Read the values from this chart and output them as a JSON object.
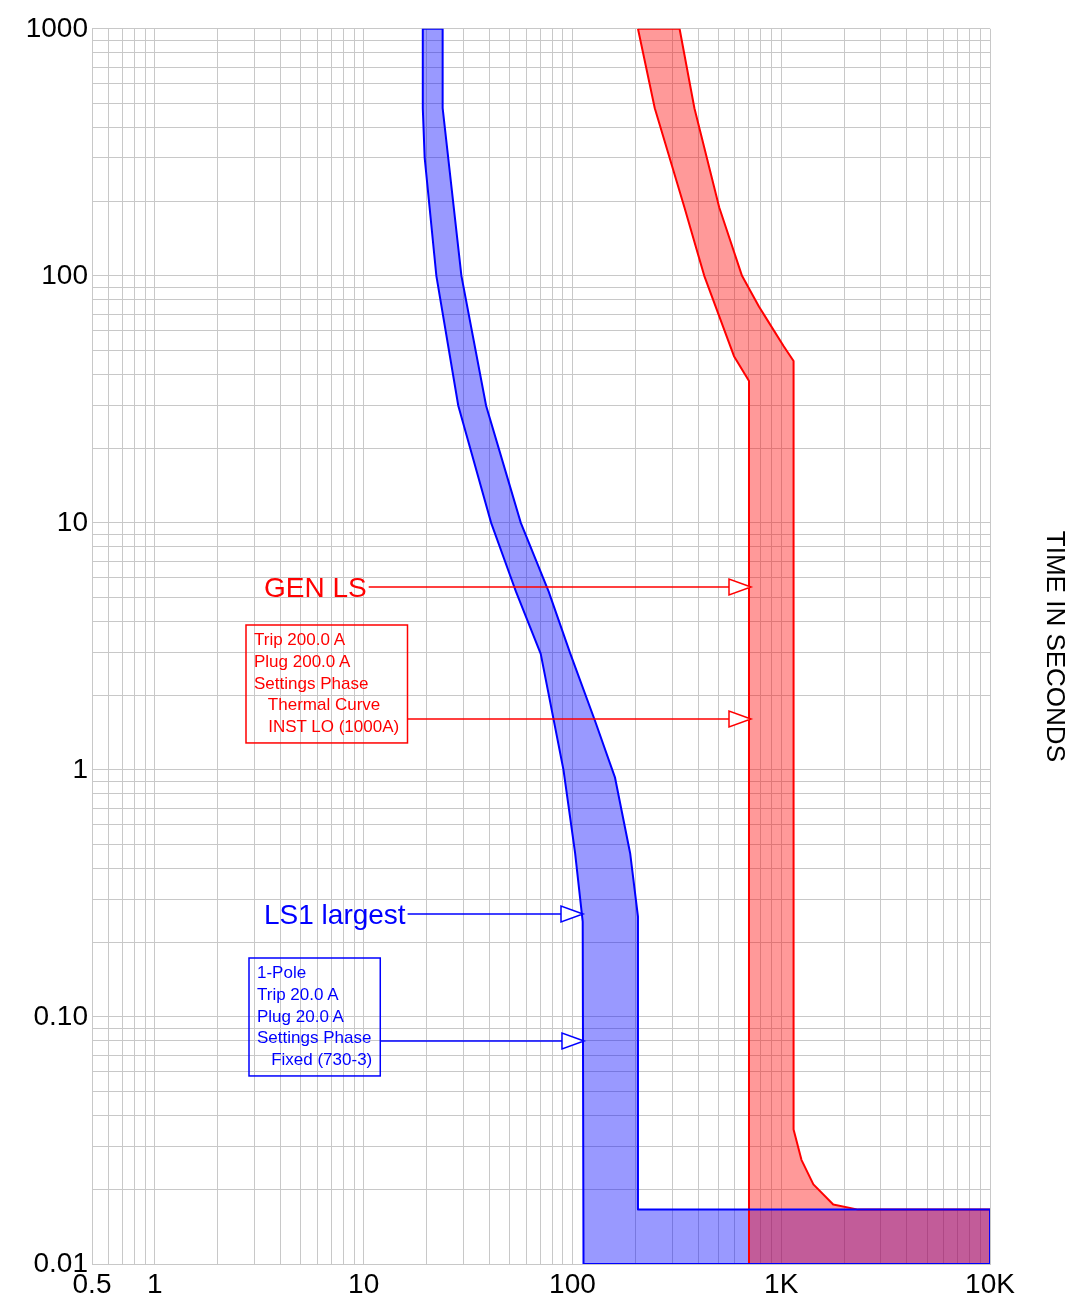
{
  "chart_data": {
    "type": "area",
    "ylabel": "TIME IN SECONDS",
    "log": "xy",
    "grid": true,
    "legend": false,
    "xlim": [
      0.5,
      10000
    ],
    "ylim": [
      0.01,
      1000
    ],
    "xticks": [
      0.5,
      {
        "value": 0.6,
        "label": null
      },
      {
        "value": 0.7,
        "label": null
      },
      {
        "value": 0.8,
        "label": null
      },
      {
        "value": 0.9,
        "label": null
      },
      1,
      {
        "value": 2,
        "label": null
      },
      {
        "value": 3,
        "label": null
      },
      {
        "value": 4,
        "label": null
      },
      {
        "value": 5,
        "label": null
      },
      {
        "value": 6,
        "label": null
      },
      {
        "value": 7,
        "label": null
      },
      {
        "value": 8,
        "label": null
      },
      {
        "value": 9,
        "label": null
      },
      10,
      {
        "value": 20,
        "label": null
      },
      {
        "value": 30,
        "label": null
      },
      {
        "value": 40,
        "label": null
      },
      {
        "value": 50,
        "label": null
      },
      {
        "value": 60,
        "label": null
      },
      {
        "value": 70,
        "label": null
      },
      {
        "value": 80,
        "label": null
      },
      {
        "value": 90,
        "label": null
      },
      100,
      {
        "value": 200,
        "label": null
      },
      {
        "value": 300,
        "label": null
      },
      {
        "value": 400,
        "label": null
      },
      {
        "value": 500,
        "label": null
      },
      {
        "value": 600,
        "label": null
      },
      {
        "value": 700,
        "label": null
      },
      {
        "value": 800,
        "label": null
      },
      {
        "value": 900,
        "label": null
      },
      {
        "value": 1000,
        "label": "1K"
      },
      {
        "value": 2000,
        "label": null
      },
      {
        "value": 3000,
        "label": null
      },
      {
        "value": 4000,
        "label": null
      },
      {
        "value": 5000,
        "label": null
      },
      {
        "value": 6000,
        "label": null
      },
      {
        "value": 7000,
        "label": null
      },
      {
        "value": 8000,
        "label": null
      },
      {
        "value": 9000,
        "label": null
      },
      {
        "value": 10000,
        "label": "10K"
      }
    ],
    "yticks": [
      0.01,
      {
        "value": 0.02,
        "label": null
      },
      {
        "value": 0.03,
        "label": null
      },
      {
        "value": 0.04,
        "label": null
      },
      {
        "value": 0.05,
        "label": null
      },
      {
        "value": 0.06,
        "label": null
      },
      {
        "value": 0.07,
        "label": null
      },
      {
        "value": 0.08,
        "label": null
      },
      {
        "value": 0.09,
        "label": null
      },
      {
        "value": 0.1,
        "label": "0.10"
      },
      {
        "value": 0.2,
        "label": null
      },
      {
        "value": 0.3,
        "label": null
      },
      {
        "value": 0.4,
        "label": null
      },
      {
        "value": 0.5,
        "label": null
      },
      {
        "value": 0.6,
        "label": null
      },
      {
        "value": 0.7,
        "label": null
      },
      {
        "value": 0.8,
        "label": null
      },
      {
        "value": 0.9,
        "label": null
      },
      1,
      {
        "value": 2,
        "label": null
      },
      {
        "value": 3,
        "label": null
      },
      {
        "value": 4,
        "label": null
      },
      {
        "value": 5,
        "label": null
      },
      {
        "value": 6,
        "label": null
      },
      {
        "value": 7,
        "label": null
      },
      {
        "value": 8,
        "label": null
      },
      {
        "value": 9,
        "label": null
      },
      10,
      {
        "value": 20,
        "label": null
      },
      {
        "value": 30,
        "label": null
      },
      {
        "value": 40,
        "label": null
      },
      {
        "value": 50,
        "label": null
      },
      {
        "value": 60,
        "label": null
      },
      {
        "value": 70,
        "label": null
      },
      {
        "value": 80,
        "label": null
      },
      {
        "value": 90,
        "label": null
      },
      100,
      {
        "value": 200,
        "label": null
      },
      {
        "value": 300,
        "label": null
      },
      {
        "value": 400,
        "label": null
      },
      {
        "value": 500,
        "label": null
      },
      {
        "value": 600,
        "label": null
      },
      {
        "value": 700,
        "label": null
      },
      {
        "value": 800,
        "label": null
      },
      {
        "value": 900,
        "label": null
      },
      1000
    ],
    "series": [
      {
        "color": "#0000ff",
        "x": [
          19.2,
          19.2,
          19.6,
          22.3,
          28.4,
          40.8,
          53.6,
          70.5,
          90.6,
          103,
          112,
          113,
          10000,
          10000,
          206,
          206,
          189,
          160,
          129,
          97.8,
          76.9,
          56.6,
          38.6,
          29.4,
          23.9,
          23.9,
          19.2
        ],
        "values": [
          1000,
          477,
          301,
          100,
          29.8,
          10,
          5.28,
          2.95,
          1,
          0.46,
          0.243,
          0.01,
          0.01,
          0.0166,
          0.0166,
          0.255,
          0.46,
          0.93,
          1.56,
          2.95,
          5.28,
          10,
          29.8,
          100,
          477,
          1000,
          1000
        ]
      },
      {
        "color": "#ff0000",
        "x": [
          206,
          248,
          344,
          428,
          594,
          701,
          701,
          10000,
          10000,
          2336,
          1775,
          1426,
          1250,
          1146,
          1146,
          1028,
          782,
          649,
          505,
          384,
          326,
          206
        ],
        "values": [
          1000,
          477,
          189,
          100,
          47.3,
          37.5,
          0.01,
          0.01,
          0.0166,
          0.0166,
          0.0174,
          0.021,
          0.0264,
          0.035,
          45.2,
          51.9,
          75.1,
          100,
          189,
          477,
          1000,
          1000
        ]
      }
    ],
    "annotations": [
      "GEN LS",
      "Trip 200.0 A\nPlug 200.0 A\nSettings Phase\n   Thermal Curve\n   INST LO (1000A)",
      "LS1 largest",
      "1-Pole\nTrip 20.0 A\nPlug 20.0 A\nSettings Phase\n   Fixed (730-3)"
    ]
  }
}
